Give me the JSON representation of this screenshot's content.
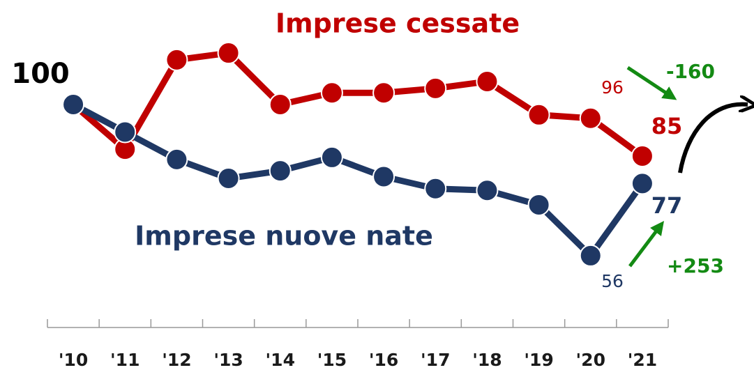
{
  "chart_data": {
    "type": "line",
    "categories": [
      "'10",
      "'11",
      "'12",
      "'13",
      "'14",
      "'15",
      "'16",
      "'17",
      "'18",
      "'19",
      "'20",
      "'21"
    ],
    "series": [
      {
        "name": "Imprese cessate",
        "color": "#c00000",
        "values": [
          100,
          87,
          113,
          115,
          100,
          103.4,
          103.4,
          104.7,
          106.7,
          97,
          96,
          85
        ]
      },
      {
        "name": "Imprese nuove nate",
        "color": "#1f3864",
        "values": [
          100,
          92,
          84,
          78.5,
          80.7,
          84.6,
          79,
          75.5,
          75,
          70.8,
          56,
          77
        ]
      }
    ],
    "ylim": [
      40,
      120
    ],
    "annotations": [
      "-160",
      "+253"
    ],
    "annotation_color": "#138a13"
  }
}
